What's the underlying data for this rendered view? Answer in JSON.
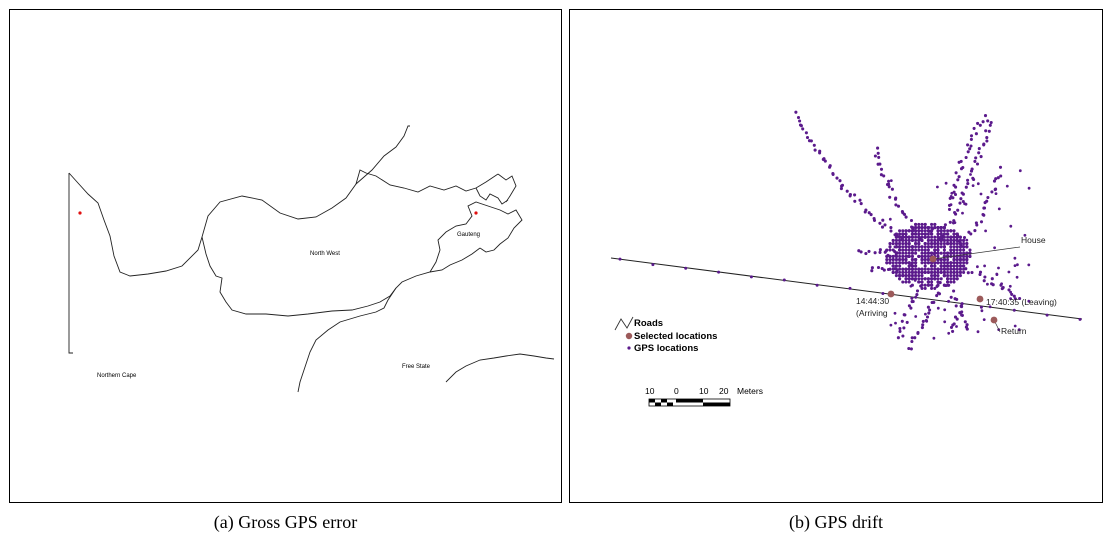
{
  "panel_a": {
    "caption": "(a) Gross GPS error",
    "regions": {
      "north_west": "North West",
      "gauteng": "Gauteng",
      "northern_cape": "Northern Cape",
      "free_state": "Free State"
    }
  },
  "panel_b": {
    "caption": "(b) GPS drift",
    "annotations": {
      "house": "House",
      "arrive_time": "14:44:30",
      "arrive_note": "(Arriving",
      "leave": "17:40:35 (Leaving)",
      "return": "Return"
    },
    "legend": {
      "roads": "Roads",
      "selected": "Selected locations",
      "gps": "GPS locations"
    },
    "scale": {
      "ticks": [
        "10",
        "0",
        "10",
        "20"
      ],
      "unit": "Meters"
    }
  },
  "colors": {
    "gps_point": "#5b1a8c",
    "selected_point": "#9c5a5a",
    "error_point": "#e01010"
  }
}
